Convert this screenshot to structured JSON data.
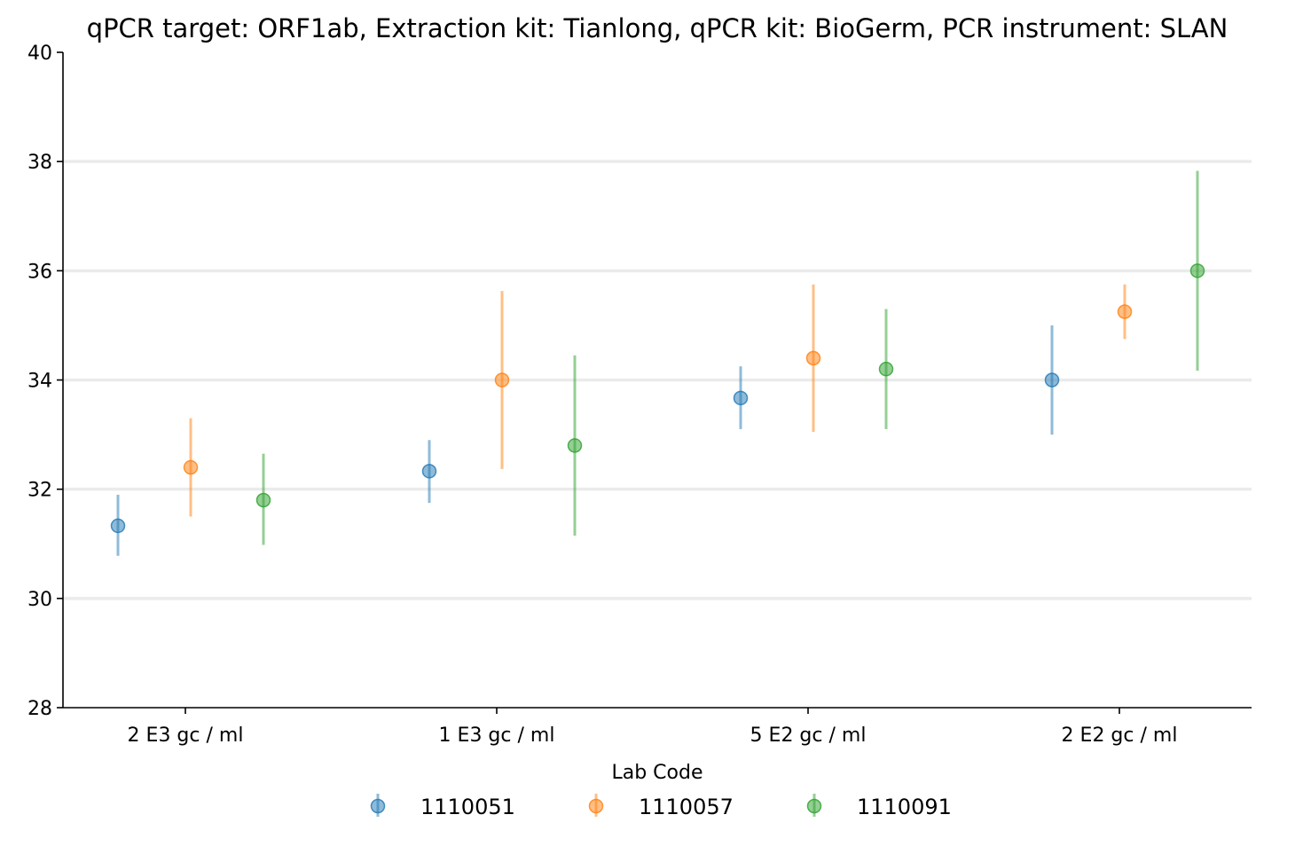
{
  "chart_data": {
    "type": "scatter",
    "title": "qPCR target: ORF1ab, Extraction kit: Tianlong, qPCR kit: BioGerm, PCR instrument: SLAN",
    "xlabel": "",
    "ylabel": "",
    "categories": [
      "2 E3 gc / ml",
      "1 E3 gc / ml",
      "5 E2 gc / ml",
      "2 E2 gc / ml"
    ],
    "ylim": [
      28,
      40
    ],
    "yticks": [
      28,
      30,
      32,
      34,
      36,
      38,
      40
    ],
    "grid": "horizontal",
    "legend": {
      "title": "Lab Code",
      "position": "bottom-center"
    },
    "series": [
      {
        "name": "1110051",
        "color": "#1f77b4",
        "values": [
          31.33,
          32.33,
          33.67,
          34.0
        ],
        "err_low": [
          30.78,
          31.75,
          33.1,
          33.0
        ],
        "err_high": [
          31.9,
          32.9,
          34.25,
          35.0
        ]
      },
      {
        "name": "1110057",
        "color": "#ff7f0e",
        "values": [
          32.4,
          34.0,
          34.4,
          35.25
        ],
        "err_low": [
          31.5,
          32.37,
          33.05,
          34.75
        ],
        "err_high": [
          33.3,
          35.63,
          35.75,
          35.75
        ]
      },
      {
        "name": "1110091",
        "color": "#2ca02c",
        "values": [
          31.8,
          32.8,
          34.2,
          36.0
        ],
        "err_low": [
          30.98,
          31.15,
          33.1,
          34.17
        ],
        "err_high": [
          32.65,
          34.45,
          35.3,
          37.83
        ]
      }
    ]
  }
}
